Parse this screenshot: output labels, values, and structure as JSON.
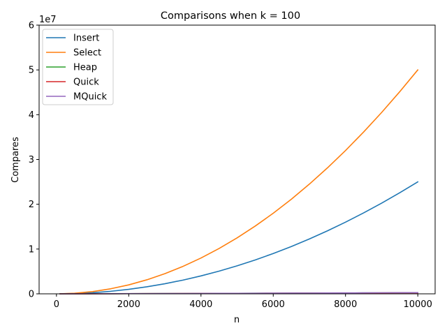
{
  "chart_data": {
    "type": "line",
    "title": "Comparisons when k = 100",
    "xlabel": "n",
    "ylabel": "Compares",
    "y_offset_label": "1e7",
    "xlim": [
      -480,
      10480
    ],
    "ylim": [
      0,
      60000000
    ],
    "x_ticks": [
      0,
      2000,
      4000,
      6000,
      8000,
      10000
    ],
    "y_ticks": [
      0,
      10000000,
      20000000,
      30000000,
      40000000,
      50000000,
      60000000
    ],
    "y_tick_labels": [
      "0",
      "1",
      "2",
      "3",
      "4",
      "5",
      "6"
    ],
    "grid": false,
    "legend_position": "top-left",
    "x": [
      100,
      500,
      1000,
      1500,
      2000,
      2500,
      3000,
      3500,
      4000,
      4500,
      5000,
      5500,
      6000,
      6500,
      7000,
      7500,
      8000,
      8500,
      9000,
      9500,
      10000
    ],
    "series": [
      {
        "name": "Insert",
        "color": "#1f77b4",
        "values": [
          2500,
          62500,
          250000,
          562500,
          1000000,
          1562500,
          2250000,
          3062500,
          4000000,
          5062500,
          6250000,
          7562500,
          9000000,
          10562500,
          12250000,
          14062500,
          16000000,
          18062500,
          20250000,
          22562500,
          25000000
        ]
      },
      {
        "name": "Select",
        "color": "#ff7f0e",
        "values": [
          5000,
          125000,
          500000,
          1125000,
          2000000,
          3125000,
          4500000,
          6125000,
          8000000,
          10125000,
          12500000,
          15125000,
          18000000,
          21125000,
          24500000,
          28125000,
          32000000,
          36125000,
          40500000,
          45125000,
          50000000
        ]
      },
      {
        "name": "Heap",
        "color": "#2ca02c",
        "values": [
          1200,
          8000,
          18000,
          28000,
          39000,
          50000,
          61000,
          73000,
          85000,
          97000,
          109000,
          121000,
          134000,
          146000,
          159000,
          172000,
          185000,
          198000,
          211000,
          224000,
          237000
        ]
      },
      {
        "name": "Quick",
        "color": "#d62728",
        "values": [
          1000,
          7000,
          16000,
          26000,
          37000,
          48000,
          59000,
          70000,
          82000,
          94000,
          106000,
          118000,
          130000,
          142000,
          155000,
          167000,
          180000,
          192000,
          205000,
          218000,
          231000
        ]
      },
      {
        "name": "MQuick",
        "color": "#9467bd",
        "values": [
          1000,
          9000,
          20000,
          31000,
          43000,
          55000,
          67000,
          80000,
          93000,
          106000,
          119000,
          133000,
          147000,
          161000,
          175000,
          189000,
          203000,
          218000,
          232000,
          247000,
          262000
        ]
      }
    ]
  }
}
